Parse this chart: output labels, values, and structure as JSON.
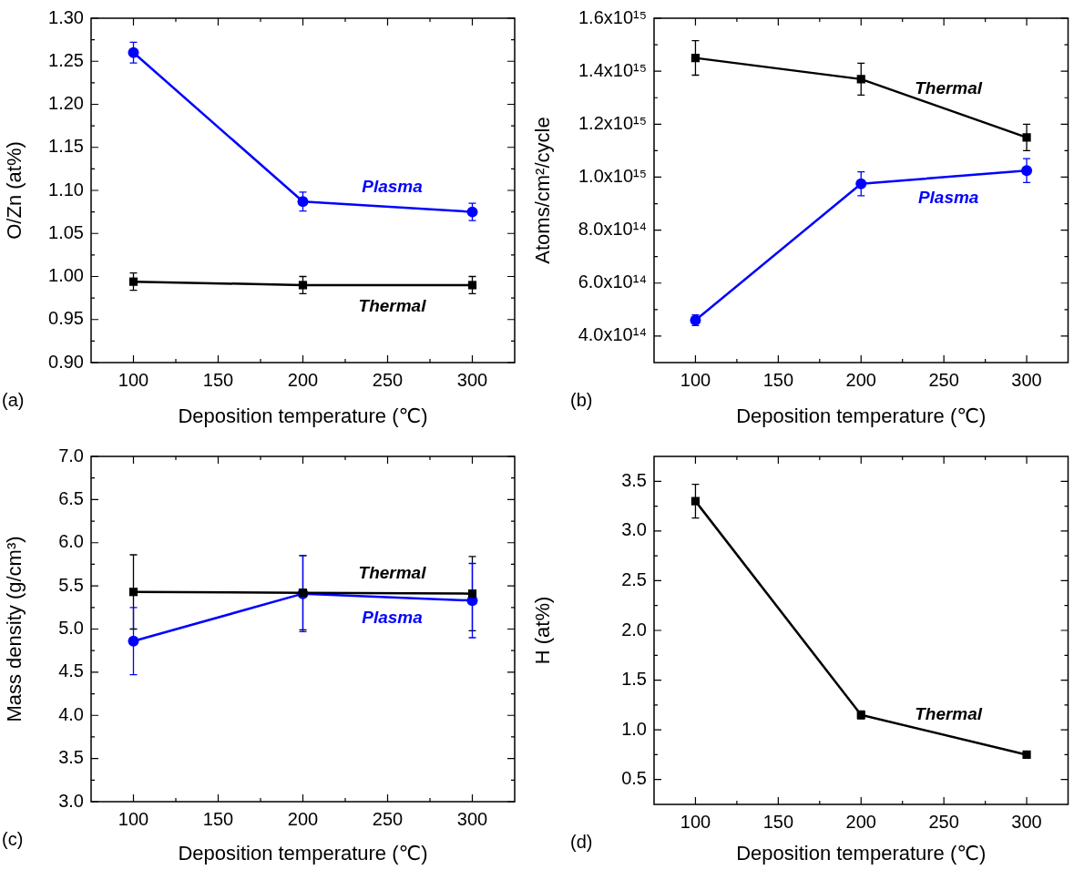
{
  "chart_data": [
    {
      "type": "line",
      "xlabel": "Deposition temperature (℃)",
      "ylabel": "O/Zn (at%)",
      "x": [
        100,
        200,
        300
      ],
      "xlim": [
        75,
        325
      ],
      "xticks": [
        100,
        150,
        200,
        250,
        300
      ],
      "ylim": [
        0.9,
        1.3
      ],
      "yticks": [
        {
          "value": 0.9,
          "label": "0.90"
        },
        {
          "value": 0.95,
          "label": "0.95"
        },
        {
          "value": 1.0,
          "label": "1.00"
        },
        {
          "value": 1.05,
          "label": "1.05"
        },
        {
          "value": 1.1,
          "label": "1.10"
        },
        {
          "value": 1.15,
          "label": "1.15"
        },
        {
          "value": 1.2,
          "label": "1.20"
        },
        {
          "value": 1.25,
          "label": "1.25"
        },
        {
          "value": 1.3,
          "label": "1.30"
        }
      ],
      "grid": false,
      "legend": false,
      "annotations": [
        "(a)"
      ],
      "series": [
        {
          "name": "Plasma",
          "color": "#0000ff",
          "marker": "circle",
          "values": [
            1.26,
            1.087,
            1.075
          ],
          "errors": [
            0.012,
            0.011,
            0.01
          ]
        },
        {
          "name": "Thermal",
          "color": "#000000",
          "marker": "square",
          "values": [
            0.994,
            0.99,
            0.99
          ],
          "errors": [
            0.01,
            0.01,
            0.01
          ]
        }
      ]
    },
    {
      "type": "line",
      "xlabel": "Deposition temperature (℃)",
      "ylabel": "Atoms/cm²/cycle",
      "x": [
        100,
        200,
        300
      ],
      "xlim": [
        75,
        325
      ],
      "xticks": [
        100,
        150,
        200,
        250,
        300
      ],
      "ylim": [
        300000000000000,
        1600000000000000
      ],
      "yticks": [
        {
          "value": 400000000000000,
          "label": "4.0x10¹⁴"
        },
        {
          "value": 600000000000000,
          "label": "6.0x10¹⁴"
        },
        {
          "value": 800000000000000,
          "label": "8.0x10¹⁴"
        },
        {
          "value": 1000000000000000,
          "label": "1.0x10¹⁵"
        },
        {
          "value": 1200000000000000,
          "label": "1.2x10¹⁵"
        },
        {
          "value": 1400000000000000,
          "label": "1.4x10¹⁵"
        },
        {
          "value": 1600000000000000,
          "label": "1.6x10¹⁵"
        }
      ],
      "grid": false,
      "legend": false,
      "annotations": [
        "(b)"
      ],
      "series": [
        {
          "name": "Thermal",
          "color": "#000000",
          "marker": "square",
          "values": [
            1450000000000000,
            1370000000000000,
            1150000000000000
          ],
          "errors": [
            65000000000000,
            60000000000000,
            50000000000000
          ]
        },
        {
          "name": "Plasma",
          "color": "#0000ff",
          "marker": "circle",
          "values": [
            460000000000000,
            975000000000000,
            1025000000000000
          ],
          "errors": [
            20000000000000,
            45000000000000,
            45000000000000
          ]
        }
      ]
    },
    {
      "type": "line",
      "xlabel": "Deposition temperature (℃)",
      "ylabel": "Mass density (g/cm³)",
      "x": [
        100,
        200,
        300
      ],
      "xlim": [
        75,
        325
      ],
      "xticks": [
        100,
        150,
        200,
        250,
        300
      ],
      "ylim": [
        3.0,
        7.0
      ],
      "yticks": [
        {
          "value": 3,
          "label": "3.0"
        },
        {
          "value": 3.5,
          "label": "3.5"
        },
        {
          "value": 4,
          "label": "4.0"
        },
        {
          "value": 4.5,
          "label": "4.5"
        },
        {
          "value": 5,
          "label": "5.0"
        },
        {
          "value": 5.5,
          "label": "5.5"
        },
        {
          "value": 6,
          "label": "6.0"
        },
        {
          "value": 6.5,
          "label": "6.5"
        },
        {
          "value": 7,
          "label": "7.0"
        }
      ],
      "grid": false,
      "legend": false,
      "annotations": [
        "(c)"
      ],
      "series": [
        {
          "name": "Thermal",
          "color": "#000000",
          "marker": "square",
          "values": [
            5.43,
            5.42,
            5.41
          ],
          "errors": [
            0.43,
            0.43,
            0.43
          ]
        },
        {
          "name": "Plasma",
          "color": "#0000ff",
          "marker": "circle",
          "values": [
            4.86,
            5.41,
            5.33
          ],
          "errors": [
            0.39,
            0.44,
            0.43
          ]
        }
      ]
    },
    {
      "type": "line",
      "xlabel": "Deposition temperature (℃)",
      "ylabel": "H (at%)",
      "x": [
        100,
        200,
        300
      ],
      "xlim": [
        75,
        325
      ],
      "xticks": [
        100,
        150,
        200,
        250,
        300
      ],
      "ylim": [
        0.25,
        3.75
      ],
      "yticks": [
        0.5,
        {
          "value": 1,
          "label": "1.0"
        },
        1.5,
        {
          "value": 2,
          "label": "2.0"
        },
        2.5,
        {
          "value": 3,
          "label": "3.0"
        },
        3.5
      ],
      "grid": false,
      "legend": false,
      "annotations": [
        "(d)"
      ],
      "series": [
        {
          "name": "Thermal",
          "color": "#000000",
          "marker": "square",
          "values": [
            3.3,
            1.15,
            0.75
          ],
          "errors": [
            0.17,
            0.04,
            null
          ]
        }
      ]
    }
  ]
}
